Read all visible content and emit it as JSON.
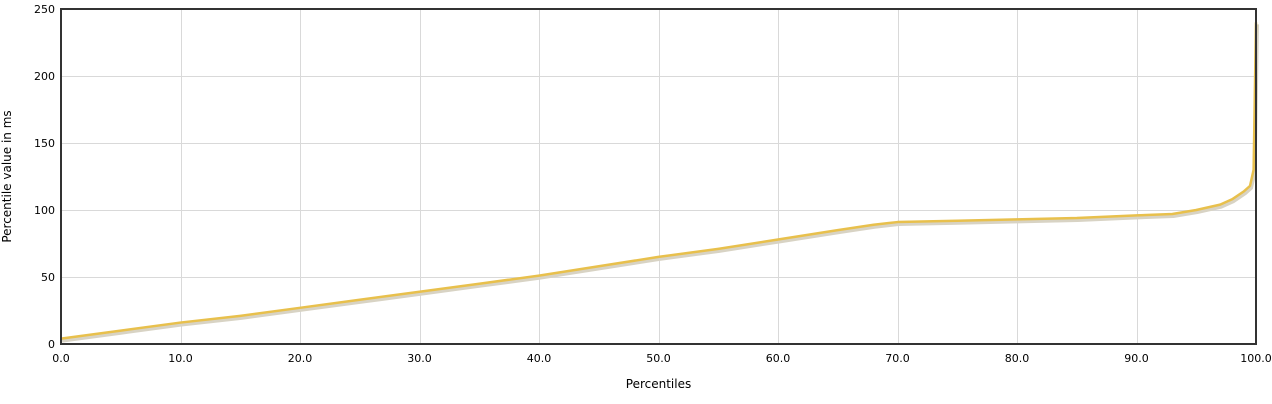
{
  "chart_data": {
    "type": "line",
    "title": "",
    "xlabel": "Percentiles",
    "ylabel": "Percentile value in ms",
    "xlim": [
      0,
      100
    ],
    "ylim": [
      0,
      250
    ],
    "x_ticks": [
      "0.0",
      "10.0",
      "20.0",
      "30.0",
      "40.0",
      "50.0",
      "60.0",
      "70.0",
      "80.0",
      "90.0",
      "100.0"
    ],
    "y_ticks": [
      "0",
      "50",
      "100",
      "150",
      "200",
      "250"
    ],
    "grid": true,
    "line_color": "#e8c04c",
    "series": [
      {
        "name": "",
        "x": [
          0,
          5,
          10,
          15,
          20,
          25,
          30,
          35,
          40,
          45,
          50,
          55,
          60,
          65,
          68,
          70,
          75,
          80,
          85,
          90,
          93,
          95,
          97,
          98,
          99,
          99.5,
          99.8,
          100
        ],
        "y": [
          4,
          10,
          16,
          21,
          27,
          33,
          39,
          45,
          51,
          58,
          65,
          71,
          78,
          85,
          89,
          91,
          92,
          93,
          94,
          96,
          97,
          100,
          104,
          108,
          114,
          118,
          130,
          240
        ]
      }
    ]
  }
}
